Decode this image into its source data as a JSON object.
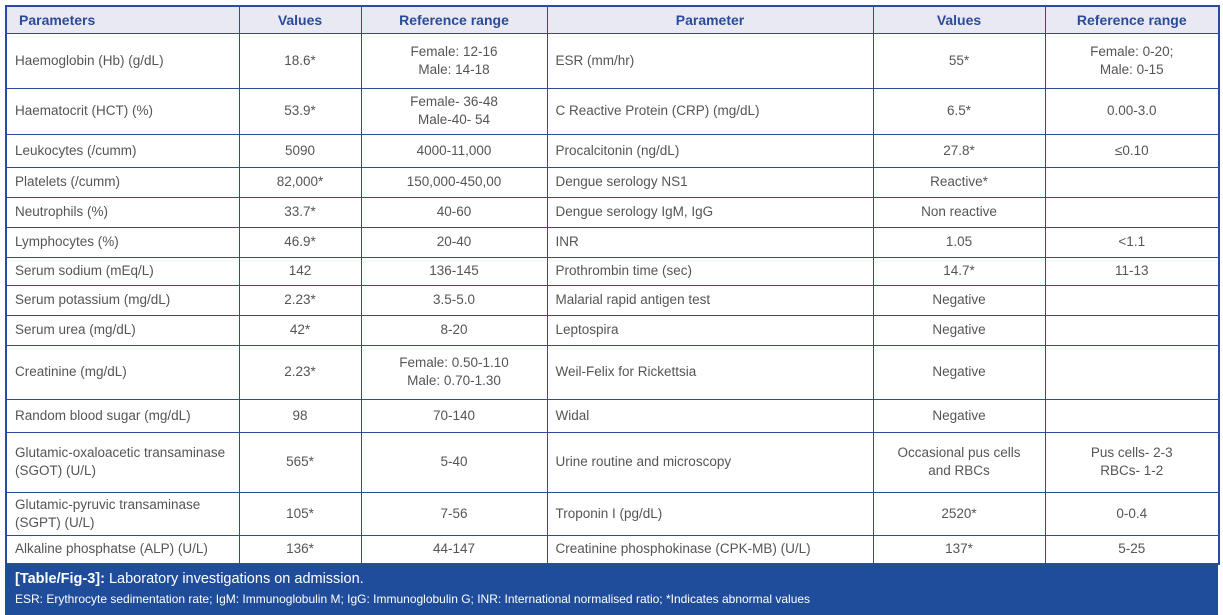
{
  "table": {
    "headers": {
      "parameters_left": "Parameters",
      "values_left": "Values",
      "reference_left": "Reference range",
      "parameter_right": "Parameter",
      "values_right": "Values",
      "reference_right": "Reference range"
    },
    "rows": [
      {
        "p1": "Haemoglobin (Hb) (g/dL)",
        "v1": "18.6*",
        "r1": "Female: 12-16\nMale: 14-18",
        "p2": "ESR (mm/hr)",
        "v2": "55*",
        "r2": "Female: 0-20;\nMale: 0-15"
      },
      {
        "p1": "Haematocrit (HCT) (%)",
        "v1": "53.9*",
        "r1": "Female- 36-48\nMale-40- 54",
        "p2": "C Reactive Protein (CRP) (mg/dL)",
        "v2": "6.5*",
        "r2": "0.00-3.0"
      },
      {
        "p1": "Leukocytes (/cumm)",
        "v1": "5090",
        "r1": "4000-11,000",
        "p2": "Procalcitonin (ng/dL)",
        "v2": "27.8*",
        "r2": "≤0.10"
      },
      {
        "p1": "Platelets (/cumm)",
        "v1": "82,000*",
        "r1": "150,000-450,00",
        "p2": "Dengue serology NS1",
        "v2": "Reactive*",
        "r2": ""
      },
      {
        "p1": "Neutrophils (%)",
        "v1": "33.7*",
        "r1": "40-60",
        "p2": "Dengue serology IgM, IgG",
        "v2": "Non reactive",
        "r2": ""
      },
      {
        "p1": "Lymphocytes (%)",
        "v1": "46.9*",
        "r1": "20-40",
        "p2": "INR",
        "v2": "1.05",
        "r2": "<1.1"
      },
      {
        "p1": "Serum sodium (mEq/L)",
        "v1": "142",
        "r1": "136-145",
        "p2": "Prothrombin time (sec)",
        "v2": "14.7*",
        "r2": "11-13"
      },
      {
        "p1": "Serum potassium (mg/dL)",
        "v1": "2.23*",
        "r1": "3.5-5.0",
        "p2": "Malarial rapid antigen test",
        "v2": "Negative",
        "r2": ""
      },
      {
        "p1": "Serum urea (mg/dL)",
        "v1": "42*",
        "r1": "8-20",
        "p2": "Leptospira",
        "v2": "Negative",
        "r2": ""
      },
      {
        "p1": "Creatinine (mg/dL)",
        "v1": "2.23*",
        "r1": "Female: 0.50-1.10\nMale: 0.70-1.30",
        "p2": "Weil-Felix for Rickettsia",
        "v2": "Negative",
        "r2": ""
      },
      {
        "p1": "Random blood sugar (mg/dL)",
        "v1": "98",
        "r1": "70-140",
        "p2": "Widal",
        "v2": "Negative",
        "r2": ""
      },
      {
        "p1": "Glutamic-oxaloacetic transaminase (SGOT) (U/L)",
        "v1": "565*",
        "r1": "5-40",
        "p2": "Urine routine and microscopy",
        "v2": "Occasional pus cells\nand RBCs",
        "r2": "Pus cells- 2-3\nRBCs- 1-2"
      },
      {
        "p1": "Glutamic-pyruvic transaminase (SGPT) (U/L)",
        "v1": "105*",
        "r1": "7-56",
        "p2": "Troponin I (pg/dL)",
        "v2": "2520*",
        "r2": "0-0.4"
      },
      {
        "p1": "Alkaline phosphatse (ALP) (U/L)",
        "v1": "136*",
        "r1": "44-147",
        "p2": "Creatinine phosphokinase (CPK-MB) (U/L)",
        "v2": "137*",
        "r2": "5-25"
      }
    ]
  },
  "caption": {
    "label": "[Table/Fig-3]:",
    "text": " Laboratory investigations on admission.",
    "footnote": "ESR: Erythrocyte sedimentation rate; IgM: Immunoglobulin M; IgG: Immunoglobulin G; INR: International normalised ratio; *Indicates abnormal values"
  },
  "colors": {
    "border_blue": "#2b4c9c",
    "header_bg": "#e9e9f3",
    "header_text": "#2a4b9b",
    "cell_text": "#555557",
    "footer_bg": "#1f4d9c"
  }
}
